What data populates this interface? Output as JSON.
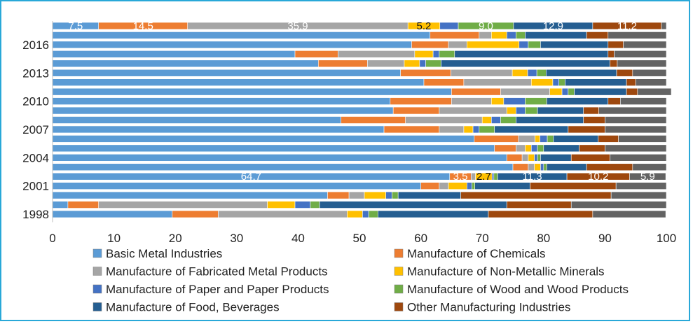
{
  "chart_data": {
    "type": "bar",
    "orientation": "horizontal",
    "stacked": "percent",
    "y_tick_labels": [
      "2016",
      "2013",
      "2010",
      "2007",
      "2004",
      "2001",
      "1998"
    ],
    "x_ticks": [
      "0",
      "10",
      "20",
      "30",
      "40",
      "50",
      "60",
      "70",
      "80",
      "90",
      "100"
    ],
    "xlim": [
      0,
      100
    ],
    "grid": false,
    "legend_position": "bottom",
    "series": [
      {
        "name": "Basic Metal Industries",
        "color": "#5b9bd5"
      },
      {
        "name": "Manufacture of Chemicals",
        "color": "#ed7d31"
      },
      {
        "name": "Manufacture of Fabricated Metal Products",
        "color": "#a5a5a5"
      },
      {
        "name": "Manufacture of Non-Metallic Minerals",
        "color": "#ffc000"
      },
      {
        "name": "Manufacture of Paper and Paper Products",
        "color": "#4472c4"
      },
      {
        "name": "Manufacture of Wood and Wood Products",
        "color": "#70ad47"
      },
      {
        "name": "Manufacture of Food, Beverages",
        "color": "#255e91"
      },
      {
        "name": "Other Manufacturing Industries",
        "color": "#9e480e"
      },
      {
        "name": "",
        "color": "#636363"
      }
    ],
    "rows": [
      [
        7.5,
        14.5,
        35.9,
        5.2,
        3.0,
        9.0,
        12.9,
        11.2,
        0.8
      ],
      [
        61.5,
        8.0,
        2.0,
        2.5,
        1.5,
        1.5,
        10.0,
        3.5,
        9.5
      ],
      [
        58.5,
        6.0,
        3.0,
        8.5,
        1.5,
        2.0,
        11.0,
        2.5,
        7.0
      ],
      [
        39.5,
        7.0,
        12.5,
        3.0,
        1.0,
        2.5,
        25.0,
        1.0,
        8.5
      ],
      [
        43.3,
        8.0,
        6.0,
        2.5,
        1.0,
        2.5,
        27.5,
        1.2,
        8.0
      ],
      [
        56.7,
        8.2,
        10.0,
        2.5,
        1.5,
        1.5,
        11.5,
        2.6,
        5.5
      ],
      [
        60.5,
        6.5,
        11.0,
        3.5,
        1.0,
        1.0,
        10.0,
        1.5,
        5.0
      ],
      [
        65.0,
        8.0,
        8.0,
        2.0,
        1.0,
        1.0,
        8.5,
        1.8,
        5.5
      ],
      [
        55.0,
        10.0,
        6.5,
        2.0,
        3.5,
        3.5,
        10.0,
        2.0,
        7.5
      ],
      [
        55.5,
        7.5,
        11.0,
        1.5,
        1.5,
        2.0,
        7.5,
        2.5,
        11.0
      ],
      [
        47.0,
        10.5,
        12.5,
        1.5,
        1.5,
        2.5,
        11.0,
        3.5,
        10.0
      ],
      [
        54.0,
        9.0,
        4.0,
        1.5,
        1.0,
        2.5,
        12.0,
        6.0,
        10.0
      ],
      [
        68.7,
        7.2,
        2.7,
        0.8,
        1.2,
        1.0,
        7.3,
        3.3,
        7.8
      ],
      [
        72.0,
        3.5,
        1.5,
        1.0,
        1.0,
        1.0,
        5.8,
        4.2,
        10.0
      ],
      [
        74.0,
        2.5,
        1.0,
        1.0,
        0.5,
        0.5,
        5.0,
        6.3,
        9.2
      ],
      [
        75.0,
        2.5,
        1.0,
        1.0,
        0.5,
        0.5,
        6.5,
        7.5,
        5.5
      ],
      [
        64.7,
        3.5,
        0.7,
        2.7,
        0.3,
        0.6,
        11.3,
        10.2,
        5.9
      ],
      [
        60.0,
        3.0,
        1.5,
        3.0,
        0.8,
        0.5,
        9.0,
        14.0,
        8.2
      ],
      [
        44.8,
        3.5,
        2.5,
        3.5,
        1.0,
        1.0,
        10.2,
        24.5,
        9.0
      ],
      [
        2.5,
        5.0,
        27.5,
        4.5,
        2.5,
        1.5,
        30.5,
        10.5,
        15.5
      ],
      [
        19.5,
        7.5,
        21.0,
        2.5,
        1.0,
        1.5,
        18.0,
        17.0,
        11.9
      ]
    ],
    "data_labels": [
      {
        "row": 0,
        "labels": [
          "7.5",
          "14.5",
          "35.9",
          "5.2",
          "",
          "9.0",
          "12.9",
          "11.2",
          ""
        ]
      },
      {
        "row": 16,
        "labels": [
          "64.7",
          "3.5",
          "",
          "2.7",
          "",
          "",
          "11.3",
          "10.2",
          "5.9"
        ]
      }
    ]
  }
}
